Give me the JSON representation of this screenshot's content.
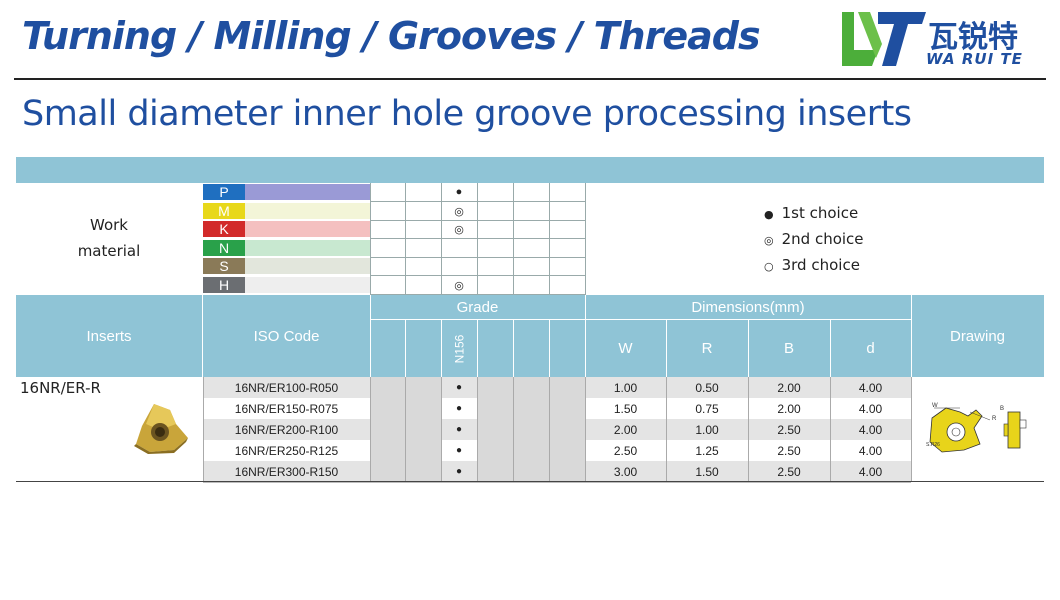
{
  "header": {
    "title": "Turning / Milling / Grooves / Threads",
    "logo_cn": "瓦锐特",
    "logo_en": "WA RUI TE",
    "logo_mark": "WT"
  },
  "subtitle": "Small diameter inner hole groove processing inserts",
  "work_material": {
    "label_line1": "Work",
    "label_line2": "material",
    "materials": [
      {
        "letter": "P",
        "color": "#1f6fc0",
        "bar": "#9a9ad6",
        "mark": "●"
      },
      {
        "letter": "M",
        "color": "#e8d81a",
        "bar": "#f3f5d8",
        "mark": "◎"
      },
      {
        "letter": "K",
        "color": "#d22a2a",
        "bar": "#f4c0c0",
        "mark": "◎"
      },
      {
        "letter": "N",
        "color": "#29a14a",
        "bar": "#c8e8d0",
        "mark": ""
      },
      {
        "letter": "S",
        "color": "#8a7a58",
        "bar": "#e2e6dc",
        "mark": ""
      },
      {
        "letter": "H",
        "color": "#6b6e72",
        "bar": "#eeeeee",
        "mark": "◎"
      }
    ]
  },
  "legend": [
    {
      "symbol": "●",
      "label": "1st choice"
    },
    {
      "symbol": "◎",
      "label": "2nd choice"
    },
    {
      "symbol": "○",
      "label": "3rd choice"
    }
  ],
  "table": {
    "col_inserts": "Inserts",
    "col_iso": "ISO Code",
    "col_grade": "Grade",
    "col_dimensions": "Dimensions(mm)",
    "col_drawing": "Drawing",
    "grade_name": "N156",
    "dim_headers": [
      "W",
      "R",
      "B",
      "d"
    ],
    "insert_name": "16NR/ER-R",
    "rows": [
      {
        "iso": "16NR/ER100-R050",
        "mark": "●",
        "w": "1.00",
        "r": "0.50",
        "b": "2.00",
        "d": "4.00"
      },
      {
        "iso": "16NR/ER150-R075",
        "mark": "●",
        "w": "1.50",
        "r": "0.75",
        "b": "2.00",
        "d": "4.00"
      },
      {
        "iso": "16NR/ER200-R100",
        "mark": "●",
        "w": "2.00",
        "r": "1.00",
        "b": "2.50",
        "d": "4.00"
      },
      {
        "iso": "16NR/ER250-R125",
        "mark": "●",
        "w": "2.50",
        "r": "1.25",
        "b": "2.50",
        "d": "4.00"
      },
      {
        "iso": "16NR/ER300-R150",
        "mark": "●",
        "w": "3.00",
        "r": "1.50",
        "b": "2.50",
        "d": "4.00"
      }
    ],
    "drawing_labels": {
      "w": "W",
      "r": "R",
      "b": "B",
      "d": "S.R26"
    }
  }
}
